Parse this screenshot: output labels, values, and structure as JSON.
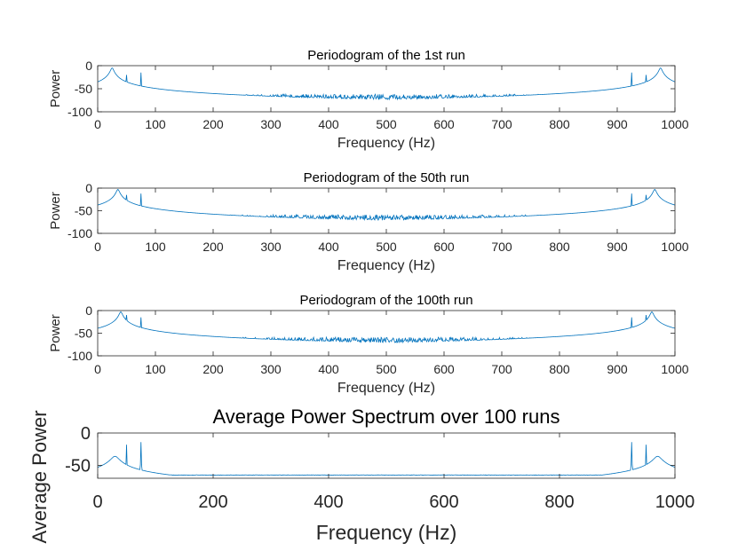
{
  "figure": {
    "background": "#ffffff",
    "line_color": "#0072bd"
  },
  "chart_data": [
    {
      "type": "line",
      "title": "Periodogram of the 1st run",
      "xlabel": "Frequency (Hz)",
      "ylabel": "Power",
      "xlim": [
        0,
        1000
      ],
      "ylim": [
        -100,
        0
      ],
      "xticks": [
        0,
        100,
        200,
        300,
        400,
        500,
        600,
        700,
        800,
        900,
        1000
      ],
      "yticks": [
        0,
        -50,
        -100
      ],
      "baseline": -68,
      "noise": 12,
      "peaks": [
        {
          "x": 25,
          "y": -5,
          "shape": "broad"
        },
        {
          "x": 50,
          "y": -20,
          "shape": "sharp"
        },
        {
          "x": 75,
          "y": -15,
          "shape": "sharp"
        },
        {
          "x": 925,
          "y": -15,
          "shape": "sharp"
        },
        {
          "x": 950,
          "y": -20,
          "shape": "sharp"
        },
        {
          "x": 975,
          "y": -5,
          "shape": "broad"
        }
      ]
    },
    {
      "type": "line",
      "title": "Periodogram of the 50th run",
      "xlabel": "Frequency (Hz)",
      "ylabel": "Power",
      "xlim": [
        0,
        1000
      ],
      "ylim": [
        -100,
        0
      ],
      "xticks": [
        0,
        100,
        200,
        300,
        400,
        500,
        600,
        700,
        800,
        900,
        1000
      ],
      "yticks": [
        0,
        -50,
        -100
      ],
      "baseline": -65,
      "noise": 12,
      "peaks": [
        {
          "x": 35,
          "y": -3,
          "shape": "broad"
        },
        {
          "x": 50,
          "y": -15,
          "shape": "sharp"
        },
        {
          "x": 75,
          "y": -12,
          "shape": "sharp"
        },
        {
          "x": 925,
          "y": -12,
          "shape": "sharp"
        },
        {
          "x": 950,
          "y": -15,
          "shape": "sharp"
        },
        {
          "x": 965,
          "y": -3,
          "shape": "broad"
        }
      ]
    },
    {
      "type": "line",
      "title": "Periodogram of the 100th run",
      "xlabel": "Frequency (Hz)",
      "ylabel": "Power",
      "xlim": [
        0,
        1000
      ],
      "ylim": [
        -100,
        0
      ],
      "xticks": [
        0,
        100,
        200,
        300,
        400,
        500,
        600,
        700,
        800,
        900,
        1000
      ],
      "yticks": [
        0,
        -50,
        -100
      ],
      "baseline": -65,
      "noise": 12,
      "peaks": [
        {
          "x": 40,
          "y": -3,
          "shape": "broad"
        },
        {
          "x": 50,
          "y": -10,
          "shape": "sharp"
        },
        {
          "x": 75,
          "y": -15,
          "shape": "sharp"
        },
        {
          "x": 925,
          "y": -15,
          "shape": "sharp"
        },
        {
          "x": 950,
          "y": -10,
          "shape": "sharp"
        },
        {
          "x": 960,
          "y": -3,
          "shape": "broad"
        }
      ]
    },
    {
      "type": "line",
      "title": "Average Power Spectrum over 100 runs",
      "xlabel": "Frequency (Hz)",
      "ylabel": "Average Power",
      "xlim": [
        0,
        1000
      ],
      "ylim": [
        -70,
        0
      ],
      "xticks": [
        0,
        200,
        400,
        600,
        800,
        1000
      ],
      "yticks": [
        0,
        -50
      ],
      "baseline": -65,
      "noise": 0.6,
      "peaks": [
        {
          "x": 30,
          "y": -36,
          "shape": "bump"
        },
        {
          "x": 50,
          "y": -18,
          "shape": "sharp"
        },
        {
          "x": 75,
          "y": -14,
          "shape": "sharp"
        },
        {
          "x": 925,
          "y": -14,
          "shape": "sharp"
        },
        {
          "x": 950,
          "y": -18,
          "shape": "sharp"
        },
        {
          "x": 970,
          "y": -36,
          "shape": "bump"
        }
      ]
    }
  ]
}
